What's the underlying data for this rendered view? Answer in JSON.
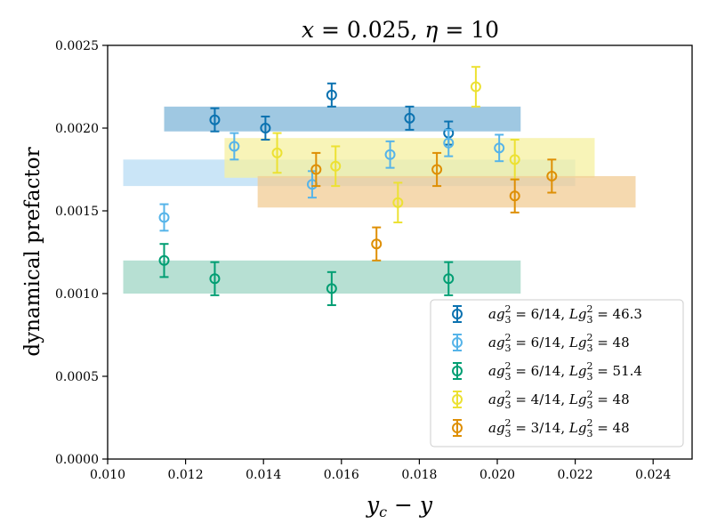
{
  "chart_data": {
    "type": "scatter",
    "title": "x = 0.025,  η = 10",
    "xlabel": "y_c − y",
    "ylabel": "dynamical prefactor",
    "xlim": [
      0.01,
      0.025
    ],
    "ylim": [
      0.0,
      0.0025
    ],
    "xticks": [
      "0.010",
      "0.012",
      "0.014",
      "0.016",
      "0.018",
      "0.020",
      "0.022",
      "0.024"
    ],
    "yticks": [
      "0.0000",
      "0.0005",
      "0.0010",
      "0.0015",
      "0.0020",
      "0.0025"
    ],
    "legend_position": "lower-right",
    "series": [
      {
        "name": "ag3² = 6/14,  Lg3² = 46.3",
        "color": "#0b72b0",
        "band": {
          "x": [
            0.01145,
            0.0206
          ],
          "y": [
            0.00198,
            0.00213
          ],
          "color": "#7fb6d8"
        },
        "points": [
          {
            "x": 0.01275,
            "y": 0.00205,
            "err": 7e-05
          },
          {
            "x": 0.01405,
            "y": 0.002,
            "err": 7e-05
          },
          {
            "x": 0.01575,
            "y": 0.0022,
            "err": 7e-05
          },
          {
            "x": 0.01775,
            "y": 0.00206,
            "err": 7e-05
          },
          {
            "x": 0.01875,
            "y": 0.00197,
            "err": 7e-05
          }
        ]
      },
      {
        "name": "ag3² = 6/14,  Lg3² = 48",
        "color": "#56b4e9",
        "band": {
          "x": [
            0.0104,
            0.022
          ],
          "y": [
            0.00165,
            0.00181
          ],
          "color": "#b8dcf4"
        },
        "points": [
          {
            "x": 0.01145,
            "y": 0.00146,
            "err": 8e-05
          },
          {
            "x": 0.01325,
            "y": 0.00189,
            "err": 8e-05
          },
          {
            "x": 0.01525,
            "y": 0.00166,
            "err": 8e-05
          },
          {
            "x": 0.01725,
            "y": 0.00184,
            "err": 8e-05
          },
          {
            "x": 0.01875,
            "y": 0.00191,
            "err": 8e-05
          },
          {
            "x": 0.02005,
            "y": 0.00188,
            "err": 8e-05
          }
        ]
      },
      {
        "name": "ag3² = 6/14,  Lg3² = 51.4",
        "color": "#029e73",
        "band": {
          "x": [
            0.0104,
            0.0206
          ],
          "y": [
            0.001,
            0.0012
          ],
          "color": "#9fd6c4"
        },
        "points": [
          {
            "x": 0.01145,
            "y": 0.0012,
            "err": 0.0001
          },
          {
            "x": 0.01275,
            "y": 0.00109,
            "err": 0.0001
          },
          {
            "x": 0.01575,
            "y": 0.00103,
            "err": 0.0001
          },
          {
            "x": 0.01875,
            "y": 0.00109,
            "err": 0.0001
          }
        ]
      },
      {
        "name": "ag3² = 4/14,  Lg3² = 48",
        "color": "#ece133",
        "band": {
          "x": [
            0.013,
            0.0225
          ],
          "y": [
            0.0017,
            0.00194
          ],
          "color": "#f5f0a0"
        },
        "points": [
          {
            "x": 0.01435,
            "y": 0.00185,
            "err": 0.00012
          },
          {
            "x": 0.01585,
            "y": 0.00177,
            "err": 0.00012
          },
          {
            "x": 0.01745,
            "y": 0.00155,
            "err": 0.00012
          },
          {
            "x": 0.01945,
            "y": 0.00225,
            "err": 0.00012
          },
          {
            "x": 0.02045,
            "y": 0.00181,
            "err": 0.00012
          }
        ]
      },
      {
        "name": "ag3² = 3/14,  Lg3² = 48",
        "color": "#de8f05",
        "band": {
          "x": [
            0.01385,
            0.02355
          ],
          "y": [
            0.00152,
            0.00171
          ],
          "color": "#f2cc94"
        },
        "points": [
          {
            "x": 0.01535,
            "y": 0.00175,
            "err": 0.0001
          },
          {
            "x": 0.0169,
            "y": 0.0013,
            "err": 0.0001
          },
          {
            "x": 0.01845,
            "y": 0.00175,
            "err": 0.0001
          },
          {
            "x": 0.02045,
            "y": 0.00159,
            "err": 0.0001
          },
          {
            "x": 0.0214,
            "y": 0.00171,
            "err": 0.0001
          }
        ]
      }
    ]
  },
  "legend_labels": [
    {
      "lhs": "ag",
      "sup": "2",
      "sub": "3",
      "frac": " = 6/14,  ",
      "lhs2": "Lg",
      "val": " = 46.3"
    },
    {
      "lhs": "ag",
      "sup": "2",
      "sub": "3",
      "frac": " = 6/14,  ",
      "lhs2": "Lg",
      "val": " = 48"
    },
    {
      "lhs": "ag",
      "sup": "2",
      "sub": "3",
      "frac": " = 6/14,  ",
      "lhs2": "Lg",
      "val": " = 51.4"
    },
    {
      "lhs": "ag",
      "sup": "2",
      "sub": "3",
      "frac": " = 4/14,  ",
      "lhs2": "Lg",
      "val": " = 48"
    },
    {
      "lhs": "ag",
      "sup": "2",
      "sub": "3",
      "frac": " = 3/14,  ",
      "lhs2": "Lg",
      "val": " = 48"
    }
  ],
  "title_parts": {
    "x_var": "x",
    "x_val": " = 0.025,  ",
    "eta_var": "η",
    "eta_val": " = 10"
  },
  "xlabel_parts": {
    "a": "y",
    "sub": "c",
    "rest": " − ",
    "b": "y"
  }
}
